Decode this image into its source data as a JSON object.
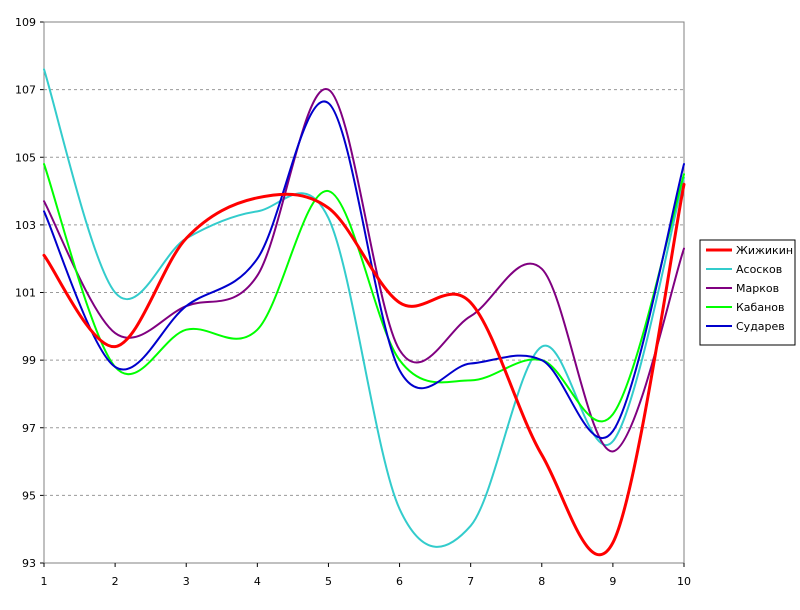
{
  "chart_data": {
    "type": "line",
    "title": "",
    "xlabel": "",
    "ylabel": "",
    "x": [
      1,
      2,
      3,
      4,
      5,
      6,
      7,
      8,
      9,
      10
    ],
    "x_ticks": [
      "1",
      "2",
      "3",
      "4",
      "5",
      "6",
      "7",
      "8",
      "9",
      "10"
    ],
    "ylim": [
      93,
      109
    ],
    "y_ticks": [
      "93",
      "95",
      "97",
      "99",
      "101",
      "103",
      "105",
      "107",
      "109"
    ],
    "grid": "horizontal dashed",
    "legend_position": "right",
    "smooth": true,
    "series": [
      {
        "name": "Жижикин",
        "color": "#ff0000",
        "values": [
          102.1,
          99.4,
          102.6,
          103.8,
          103.5,
          100.7,
          100.7,
          96.2,
          93.6,
          104.2
        ]
      },
      {
        "name": "Асосков",
        "color": "#33cccc",
        "values": [
          107.6,
          101.0,
          102.6,
          103.4,
          103.2,
          94.6,
          94.1,
          99.4,
          96.6,
          104.4
        ]
      },
      {
        "name": "Марков",
        "color": "#800080",
        "values": [
          103.7,
          99.8,
          100.6,
          101.5,
          107.0,
          99.3,
          100.3,
          101.7,
          96.3,
          102.3
        ]
      },
      {
        "name": "Кабанов",
        "color": "#00ff00",
        "values": [
          104.8,
          98.8,
          99.9,
          99.9,
          104.0,
          99.0,
          98.4,
          99.0,
          97.4,
          104.5
        ]
      },
      {
        "name": "Сударев",
        "color": "#0000cc",
        "values": [
          103.4,
          98.8,
          100.6,
          102.0,
          106.6,
          98.7,
          98.9,
          99.0,
          96.9,
          104.8
        ]
      }
    ]
  }
}
